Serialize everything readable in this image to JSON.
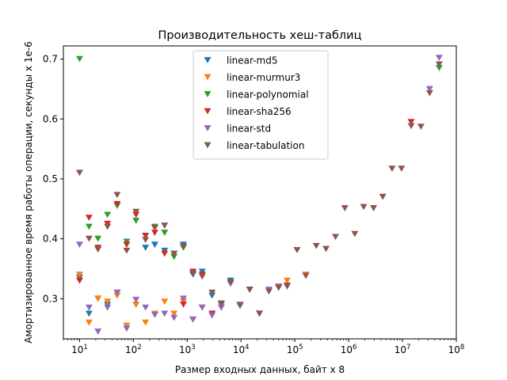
{
  "chart_data": {
    "type": "scatter",
    "title": "Производительность хеш-таблиц",
    "xlabel": "Размер входных данных, байт x 8",
    "ylabel": "Амортизированное время работы операции, секунды x 1e-6",
    "xscale": "log",
    "xlim": [
      5,
      100000000
    ],
    "ylim": [
      0.233,
      0.722
    ],
    "x_ticks": [
      {
        "value": 10,
        "base": "10",
        "exp": "1"
      },
      {
        "value": 100,
        "base": "10",
        "exp": "2"
      },
      {
        "value": 1000,
        "base": "10",
        "exp": "3"
      },
      {
        "value": 10000,
        "base": "10",
        "exp": "4"
      },
      {
        "value": 100000,
        "base": "10",
        "exp": "5"
      },
      {
        "value": 1000000,
        "base": "10",
        "exp": "6"
      },
      {
        "value": 10000000,
        "base": "10",
        "exp": "7"
      },
      {
        "value": 100000000,
        "base": "10",
        "exp": "8"
      }
    ],
    "y_ticks": [
      {
        "value": 0.3,
        "label": "0.3"
      },
      {
        "value": 0.4,
        "label": "0.4"
      },
      {
        "value": 0.5,
        "label": "0.5"
      },
      {
        "value": 0.6,
        "label": "0.6"
      },
      {
        "value": 0.7,
        "label": "0.7"
      }
    ],
    "grid": false,
    "legend_position": "top-center",
    "marker": "triangle-down",
    "series": [
      {
        "name": "linear-md5",
        "color": "#1f77b4",
        "points": [
          [
            10,
            0.335
          ],
          [
            15,
            0.275
          ],
          [
            22,
            0.3
          ],
          [
            33,
            0.29
          ],
          [
            50,
            0.31
          ],
          [
            75,
            0.255
          ],
          [
            112,
            0.29
          ],
          [
            168,
            0.385
          ],
          [
            250,
            0.39
          ],
          [
            380,
            0.38
          ],
          [
            570,
            0.37
          ],
          [
            850,
            0.39
          ],
          [
            1280,
            0.34
          ],
          [
            1900,
            0.345
          ],
          [
            2900,
            0.305
          ],
          [
            4300,
            0.29
          ],
          [
            6400,
            0.33
          ],
          [
            9600,
            0.29
          ],
          [
            14500,
            0.315
          ],
          [
            22000,
            0.275
          ],
          [
            33000,
            0.315
          ],
          [
            50000,
            0.32
          ]
        ]
      },
      {
        "name": "linear-murmur3",
        "color": "#ff7f0e",
        "points": [
          [
            10,
            0.34
          ],
          [
            15,
            0.26
          ],
          [
            22,
            0.3
          ],
          [
            33,
            0.295
          ],
          [
            50,
            0.305
          ],
          [
            75,
            0.255
          ],
          [
            112,
            0.29
          ],
          [
            168,
            0.26
          ],
          [
            250,
            0.275
          ],
          [
            380,
            0.295
          ],
          [
            570,
            0.275
          ],
          [
            850,
            0.295
          ],
          [
            1280,
            0.265
          ],
          [
            1900,
            0.285
          ],
          [
            2900,
            0.275
          ],
          [
            4300,
            0.285
          ],
          [
            6400,
            0.325
          ],
          [
            9600,
            0.29
          ],
          [
            14500,
            0.315
          ],
          [
            22000,
            0.275
          ],
          [
            33000,
            0.315
          ],
          [
            50000,
            0.32
          ],
          [
            72000,
            0.33
          ],
          [
            160000,
            0.34
          ]
        ]
      },
      {
        "name": "linear-polynomial",
        "color": "#2ca02c",
        "points": [
          [
            10,
            0.7
          ],
          [
            15,
            0.42
          ],
          [
            22,
            0.4
          ],
          [
            33,
            0.44
          ],
          [
            50,
            0.455
          ],
          [
            75,
            0.395
          ],
          [
            112,
            0.43
          ],
          [
            168,
            0.405
          ],
          [
            250,
            0.42
          ],
          [
            380,
            0.41
          ],
          [
            570,
            0.37
          ],
          [
            850,
            0.385
          ],
          [
            48000000,
            0.685
          ]
        ]
      },
      {
        "name": "linear-sha256",
        "color": "#d62728",
        "points": [
          [
            10,
            0.33
          ],
          [
            15,
            0.435
          ],
          [
            22,
            0.385
          ],
          [
            33,
            0.425
          ],
          [
            50,
            0.458
          ],
          [
            75,
            0.39
          ],
          [
            112,
            0.44
          ],
          [
            168,
            0.405
          ],
          [
            250,
            0.41
          ],
          [
            380,
            0.375
          ],
          [
            570,
            0.375
          ],
          [
            850,
            0.29
          ],
          [
            1280,
            0.345
          ],
          [
            1900,
            0.34
          ],
          [
            2900,
            0.275
          ],
          [
            14500000,
            0.595
          ]
        ]
      },
      {
        "name": "linear-std",
        "color": "#9467bd",
        "points": [
          [
            10,
            0.39
          ],
          [
            15,
            0.285
          ],
          [
            22,
            0.245
          ],
          [
            33,
            0.285
          ],
          [
            50,
            0.31
          ],
          [
            75,
            0.25
          ],
          [
            112,
            0.298
          ],
          [
            168,
            0.285
          ],
          [
            250,
            0.273
          ],
          [
            380,
            0.275
          ],
          [
            570,
            0.268
          ],
          [
            850,
            0.3
          ],
          [
            1280,
            0.265
          ],
          [
            1900,
            0.285
          ],
          [
            2900,
            0.272
          ],
          [
            4300,
            0.285
          ],
          [
            6400,
            0.325
          ],
          [
            9600,
            0.29
          ],
          [
            14500,
            0.315
          ],
          [
            22000,
            0.275
          ],
          [
            33000,
            0.315
          ],
          [
            50000,
            0.32
          ],
          [
            72000,
            0.32
          ],
          [
            32000000,
            0.65
          ],
          [
            48000000,
            0.702
          ]
        ]
      },
      {
        "name": "linear-tabulation",
        "color": "#8c564b",
        "points": [
          [
            10,
            0.51
          ],
          [
            15,
            0.4
          ],
          [
            22,
            0.382
          ],
          [
            33,
            0.42
          ],
          [
            50,
            0.473
          ],
          [
            75,
            0.38
          ],
          [
            112,
            0.445
          ],
          [
            168,
            0.398
          ],
          [
            250,
            0.418
          ],
          [
            380,
            0.422
          ],
          [
            570,
            0.375
          ],
          [
            850,
            0.387
          ],
          [
            1280,
            0.342
          ],
          [
            1900,
            0.337
          ],
          [
            2900,
            0.31
          ],
          [
            4300,
            0.292
          ],
          [
            6400,
            0.327
          ],
          [
            9600,
            0.288
          ],
          [
            14500,
            0.315
          ],
          [
            22000,
            0.275
          ],
          [
            33000,
            0.312
          ],
          [
            50000,
            0.318
          ],
          [
            72000,
            0.322
          ],
          [
            110000,
            0.381
          ],
          [
            160000,
            0.338
          ],
          [
            250000,
            0.388
          ],
          [
            380000,
            0.383
          ],
          [
            570000,
            0.403
          ],
          [
            850000,
            0.451
          ],
          [
            1300000,
            0.408
          ],
          [
            1900000,
            0.453
          ],
          [
            2900000,
            0.451
          ],
          [
            4300000,
            0.47
          ],
          [
            6400000,
            0.517
          ],
          [
            9600000,
            0.517
          ],
          [
            14500000,
            0.588
          ],
          [
            22000000,
            0.587
          ],
          [
            32000000,
            0.643
          ],
          [
            48000000,
            0.691
          ]
        ]
      }
    ]
  }
}
